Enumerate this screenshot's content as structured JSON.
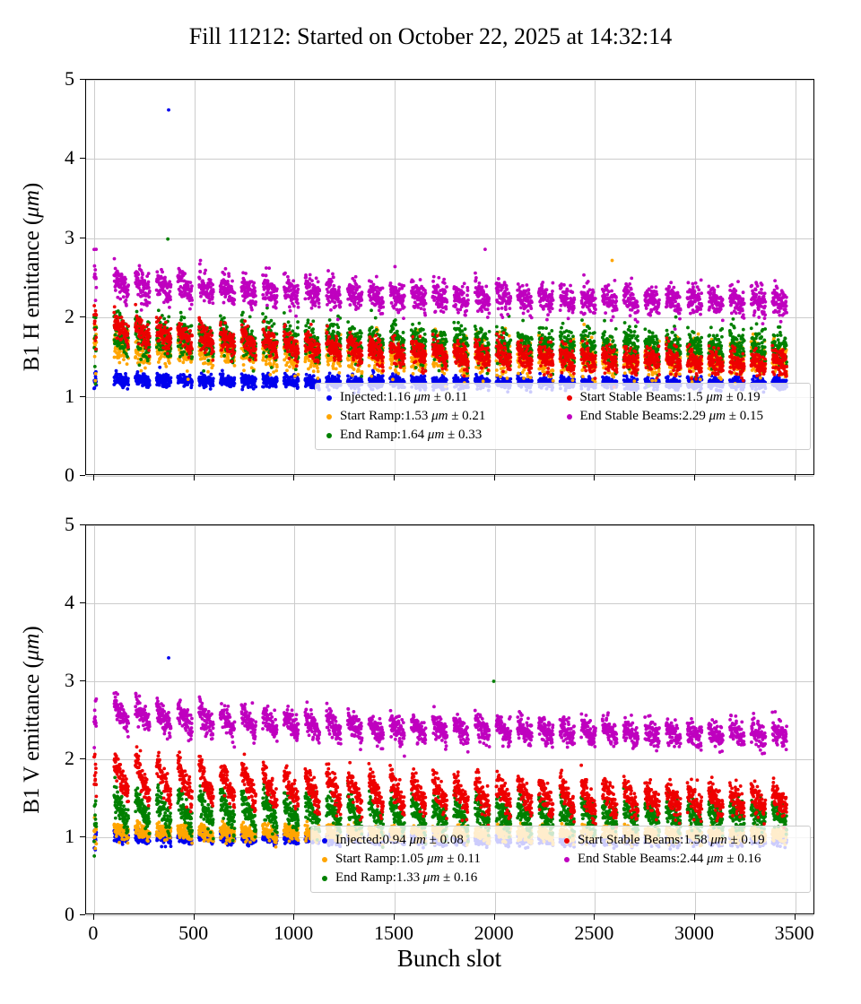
{
  "title": "Fill 11212: Started on October 22, 2025 at 14:32:14",
  "xlabel": "Bunch slot",
  "chart_data": [
    {
      "id": "b1h",
      "type": "scatter",
      "ylabel": {
        "pre": "B1 H emittance (",
        "unit": "μm",
        "post": ")"
      },
      "unit": "μm",
      "xlim": [
        -40,
        3600
      ],
      "ylim": [
        0,
        5
      ],
      "xticks": [
        0,
        500,
        1000,
        1500,
        2000,
        2500,
        3000,
        3500
      ],
      "yticks": [
        0,
        1,
        2,
        3,
        4,
        5
      ],
      "show_x_tick_labels": false,
      "grid": true,
      "legend_position": "lower right",
      "series": [
        {
          "name": "Injected",
          "color": "#0000ee",
          "mean": "1.16",
          "std": "0.11",
          "gen": {
            "start": 1.22,
            "end": 1.16,
            "jitter": 0.04,
            "ramp": 0.04
          }
        },
        {
          "name": "Start Ramp",
          "color": "#ffa500",
          "mean": "1.53",
          "std": "0.21",
          "gen": {
            "start": 1.62,
            "end": 1.46,
            "jitter": 0.11,
            "ramp": 0.12
          }
        },
        {
          "name": "End Ramp",
          "color": "#008000",
          "mean": "1.64",
          "std": "0.33",
          "gen": {
            "start": 1.78,
            "end": 1.6,
            "jitter": 0.12,
            "ramp": 0.2
          }
        },
        {
          "name": "Start Stable Beams",
          "color": "#ee0000",
          "mean": "1.5",
          "std": "0.19",
          "gen": {
            "start": 1.88,
            "end": 1.37,
            "jitter": 0.08,
            "ramp": 0.22
          }
        },
        {
          "name": "End Stable Beams",
          "color": "#bf00bf",
          "mean": "2.29",
          "std": "0.15",
          "gen": {
            "start": 2.45,
            "end": 2.17,
            "jitter": 0.09,
            "ramp": 0.2
          }
        }
      ],
      "outliers": [
        {
          "series": "Injected",
          "x": 372,
          "y": 4.62
        },
        {
          "series": "End Ramp",
          "x": 368,
          "y": 2.99
        },
        {
          "series": "End Stable Beams",
          "x": 1952,
          "y": 2.86
        },
        {
          "series": "Start Ramp",
          "x": 2586,
          "y": 2.72
        }
      ]
    },
    {
      "id": "b1v",
      "type": "scatter",
      "ylabel": {
        "pre": "B1 V emittance (",
        "unit": "μm",
        "post": ")"
      },
      "unit": "μm",
      "xlim": [
        -40,
        3600
      ],
      "ylim": [
        0,
        5
      ],
      "xticks": [
        0,
        500,
        1000,
        1500,
        2000,
        2500,
        3000,
        3500
      ],
      "yticks": [
        0,
        1,
        2,
        3,
        4,
        5
      ],
      "show_x_tick_labels": true,
      "grid": true,
      "legend_position": "lower right",
      "series": [
        {
          "name": "Injected",
          "color": "#0000ee",
          "mean": "0.94",
          "std": "0.08",
          "gen": {
            "start": 1.0,
            "end": 0.96,
            "jitter": 0.035,
            "ramp": 0.05
          }
        },
        {
          "name": "Start Ramp",
          "color": "#ffa500",
          "mean": "1.05",
          "std": "0.11",
          "gen": {
            "start": 1.08,
            "end": 1.03,
            "jitter": 0.05,
            "ramp": 0.08
          }
        },
        {
          "name": "End Ramp",
          "color": "#008000",
          "mean": "1.33",
          "std": "0.16",
          "gen": {
            "start": 1.35,
            "end": 1.27,
            "jitter": 0.09,
            "ramp": 0.38
          }
        },
        {
          "name": "Start Stable Beams",
          "color": "#ee0000",
          "mean": "1.58",
          "std": "0.19",
          "gen": {
            "start": 1.8,
            "end": 1.43,
            "jitter": 0.09,
            "ramp": 0.5
          }
        },
        {
          "name": "End Stable Beams",
          "color": "#bf00bf",
          "mean": "2.44",
          "std": "0.16",
          "gen": {
            "start": 2.6,
            "end": 2.28,
            "jitter": 0.08,
            "ramp": 0.28
          }
        }
      ],
      "outliers": [
        {
          "series": "Injected",
          "x": 372,
          "y": 3.3
        },
        {
          "series": "End Ramp",
          "x": 1995,
          "y": 3.0
        }
      ]
    }
  ]
}
